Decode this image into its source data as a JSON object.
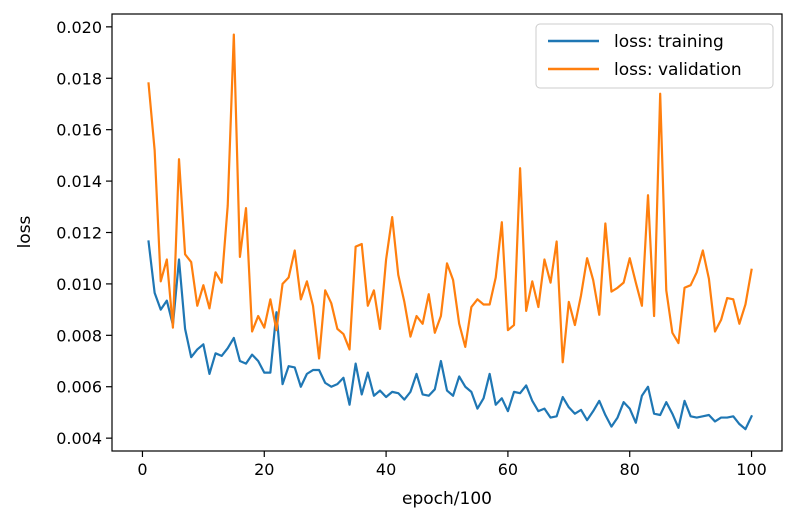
{
  "chart_data": {
    "type": "line",
    "xlabel": "epoch/100",
    "ylabel": "loss",
    "xlim": [
      -5,
      105
    ],
    "ylim": [
      0.0035,
      0.0205
    ],
    "x_ticks": [
      0,
      20,
      40,
      60,
      80,
      100
    ],
    "x_tick_labels": [
      "0",
      "20",
      "40",
      "60",
      "80",
      "100"
    ],
    "y_ticks": [
      0.004,
      0.006,
      0.008,
      0.01,
      0.012,
      0.014,
      0.016,
      0.018,
      0.02
    ],
    "y_tick_labels": [
      "0.004",
      "0.006",
      "0.008",
      "0.010",
      "0.012",
      "0.014",
      "0.016",
      "0.018",
      "0.020"
    ],
    "grid": false,
    "legend_position": "top-right",
    "x": [
      1,
      2,
      3,
      4,
      5,
      6,
      7,
      8,
      9,
      10,
      11,
      12,
      13,
      14,
      15,
      16,
      17,
      18,
      19,
      20,
      21,
      22,
      23,
      24,
      25,
      26,
      27,
      28,
      29,
      30,
      31,
      32,
      33,
      34,
      35,
      36,
      37,
      38,
      39,
      40,
      41,
      42,
      43,
      44,
      45,
      46,
      47,
      48,
      49,
      50,
      51,
      52,
      53,
      54,
      55,
      56,
      57,
      58,
      59,
      60,
      61,
      62,
      63,
      64,
      65,
      66,
      67,
      68,
      69,
      70,
      71,
      72,
      73,
      74,
      75,
      76,
      77,
      78,
      79,
      80,
      81,
      82,
      83,
      84,
      85,
      86,
      87,
      88,
      89,
      90,
      91,
      92,
      93,
      94,
      95,
      96,
      97,
      98,
      99,
      100
    ],
    "series": [
      {
        "name": "loss: training",
        "color": "#1f77b4",
        "values": [
          0.01165,
          0.00965,
          0.009,
          0.00935,
          0.0084,
          0.01095,
          0.00825,
          0.00715,
          0.00745,
          0.00765,
          0.0065,
          0.0073,
          0.0072,
          0.0075,
          0.0079,
          0.007,
          0.0069,
          0.00725,
          0.007,
          0.00655,
          0.00655,
          0.0089,
          0.0061,
          0.0068,
          0.00675,
          0.006,
          0.0065,
          0.00665,
          0.00665,
          0.00615,
          0.006,
          0.0061,
          0.00635,
          0.0053,
          0.0069,
          0.0057,
          0.00655,
          0.00565,
          0.00585,
          0.0056,
          0.0058,
          0.00575,
          0.0055,
          0.0058,
          0.0065,
          0.0057,
          0.00565,
          0.0059,
          0.007,
          0.00585,
          0.00565,
          0.0064,
          0.006,
          0.0058,
          0.00515,
          0.00555,
          0.0065,
          0.0053,
          0.00555,
          0.00505,
          0.0058,
          0.00575,
          0.00605,
          0.00545,
          0.00505,
          0.00515,
          0.0048,
          0.00485,
          0.0056,
          0.0052,
          0.00495,
          0.0051,
          0.0047,
          0.00505,
          0.00545,
          0.0049,
          0.00445,
          0.0048,
          0.0054,
          0.00515,
          0.0046,
          0.00565,
          0.006,
          0.00495,
          0.0049,
          0.0054,
          0.00495,
          0.0044,
          0.00545,
          0.00485,
          0.0048,
          0.00485,
          0.0049,
          0.00465,
          0.0048,
          0.0048,
          0.00485,
          0.00455,
          0.00435,
          0.00485
        ]
      },
      {
        "name": "loss: validation",
        "color": "#ff7f0e",
        "values": [
          0.0178,
          0.0152,
          0.0101,
          0.01095,
          0.0083,
          0.01485,
          0.01115,
          0.01085,
          0.00915,
          0.00995,
          0.00905,
          0.01045,
          0.01005,
          0.01305,
          0.0197,
          0.01105,
          0.01295,
          0.00815,
          0.00875,
          0.0083,
          0.0094,
          0.0082,
          0.01,
          0.01025,
          0.0113,
          0.0094,
          0.0101,
          0.00915,
          0.0071,
          0.00975,
          0.00925,
          0.00825,
          0.00805,
          0.00745,
          0.01145,
          0.01155,
          0.00915,
          0.00975,
          0.00825,
          0.01095,
          0.0126,
          0.01035,
          0.0093,
          0.00795,
          0.00875,
          0.00845,
          0.0096,
          0.0081,
          0.00875,
          0.0108,
          0.01015,
          0.00845,
          0.00755,
          0.0091,
          0.0094,
          0.0092,
          0.0092,
          0.01025,
          0.0124,
          0.0082,
          0.0084,
          0.0145,
          0.00895,
          0.0101,
          0.0091,
          0.01095,
          0.01005,
          0.01165,
          0.00695,
          0.0093,
          0.0084,
          0.00955,
          0.011,
          0.01015,
          0.0088,
          0.01235,
          0.0097,
          0.00985,
          0.01005,
          0.011,
          0.01005,
          0.00915,
          0.01345,
          0.00875,
          0.0174,
          0.00975,
          0.0081,
          0.0077,
          0.00985,
          0.00995,
          0.01045,
          0.0113,
          0.0102,
          0.00815,
          0.0086,
          0.00945,
          0.0094,
          0.00845,
          0.0092,
          0.01055
        ]
      }
    ]
  }
}
